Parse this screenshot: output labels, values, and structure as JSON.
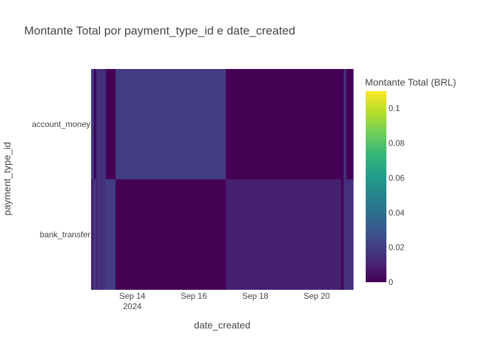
{
  "chart_data": {
    "type": "heatmap",
    "title": "Montante Total por payment_type_id e date_created",
    "xlabel": "date_created",
    "ylabel": "payment_type_id",
    "y_categories": [
      "account_money",
      "bank_transfer"
    ],
    "x_ticks": [
      {
        "date": "2024-09-14",
        "label": "Sep 14",
        "sublabel": "2024"
      },
      {
        "date": "2024-09-16",
        "label": "Sep 16",
        "sublabel": ""
      },
      {
        "date": "2024-09-18",
        "label": "Sep 18",
        "sublabel": ""
      },
      {
        "date": "2024-09-20",
        "label": "Sep 20",
        "sublabel": ""
      }
    ],
    "x_range": [
      "2024-09-12T15:50",
      "2024-09-21T04:30"
    ],
    "cells": [
      {
        "start": "2024-09-12T15:50",
        "end": "2024-09-12T18:00",
        "account_money": 0.02,
        "bank_transfer": 0.01
      },
      {
        "start": "2024-09-12T18:00",
        "end": "2024-09-12T19:30",
        "account_money": 0.0,
        "bank_transfer": 0.02
      },
      {
        "start": "2024-09-12T19:30",
        "end": "2024-09-12T20:30",
        "account_money": 0.01,
        "bank_transfer": 0.01
      },
      {
        "start": "2024-09-12T20:30",
        "end": "2024-09-13T03:30",
        "account_money": 0.015,
        "bank_transfer": 0.015
      },
      {
        "start": "2024-09-13T03:30",
        "end": "2024-09-13T11:00",
        "account_money": 0.0,
        "bank_transfer": 0.02
      },
      {
        "start": "2024-09-13T11:00",
        "end": "2024-09-17T01:00",
        "account_money": 0.02,
        "bank_transfer": 0.0
      },
      {
        "start": "2024-09-17T01:00",
        "end": "2024-09-20T19:00",
        "account_money": 0.0,
        "bank_transfer": 0.01
      },
      {
        "start": "2024-09-20T19:00",
        "end": "2024-09-20T21:00",
        "account_money": 0.0,
        "bank_transfer": 0.0
      },
      {
        "start": "2024-09-20T21:00",
        "end": "2024-09-20T23:00",
        "account_money": 0.015,
        "bank_transfer": 0.015
      },
      {
        "start": "2024-09-20T23:00",
        "end": "2024-09-21T04:30",
        "account_money": 0.0,
        "bank_transfer": 0.015
      }
    ],
    "colorbar": {
      "title": "Montante Total (BRL)",
      "zmin": 0,
      "zmax": 0.11,
      "ticks": [
        0,
        0.02,
        0.04,
        0.06,
        0.08,
        0.1
      ],
      "tick_labels": [
        "0",
        "0.02",
        "0.04",
        "0.06",
        "0.08",
        "0.1"
      ],
      "colorscale": [
        "#440154",
        "#482878",
        "#3e4989",
        "#31688e",
        "#26828e",
        "#1f9e89",
        "#35b779",
        "#6ece58",
        "#b5de2b",
        "#fde725"
      ]
    },
    "grid": false
  }
}
